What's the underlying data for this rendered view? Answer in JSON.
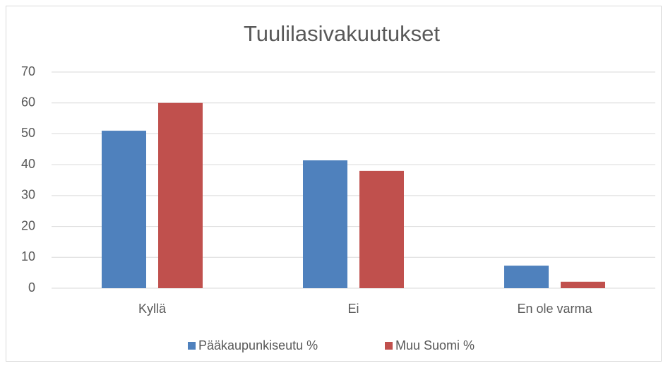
{
  "chart_data": {
    "type": "bar",
    "title": "Tuulilasivakuutukset",
    "categories": [
      "Kyllä",
      "Ei",
      "En ole varma"
    ],
    "series": [
      {
        "name": "Pääkaupunkiseutu %",
        "color": "#4f81bd",
        "values": [
          51,
          41.4,
          7.3
        ]
      },
      {
        "name": "Muu Suomi %",
        "color": "#c0504d",
        "values": [
          60,
          38,
          2.1
        ]
      }
    ],
    "ylim": [
      0,
      70
    ],
    "yticks": [
      0,
      10,
      20,
      30,
      40,
      50,
      60,
      70
    ],
    "grid": true,
    "legend": "bottom"
  }
}
